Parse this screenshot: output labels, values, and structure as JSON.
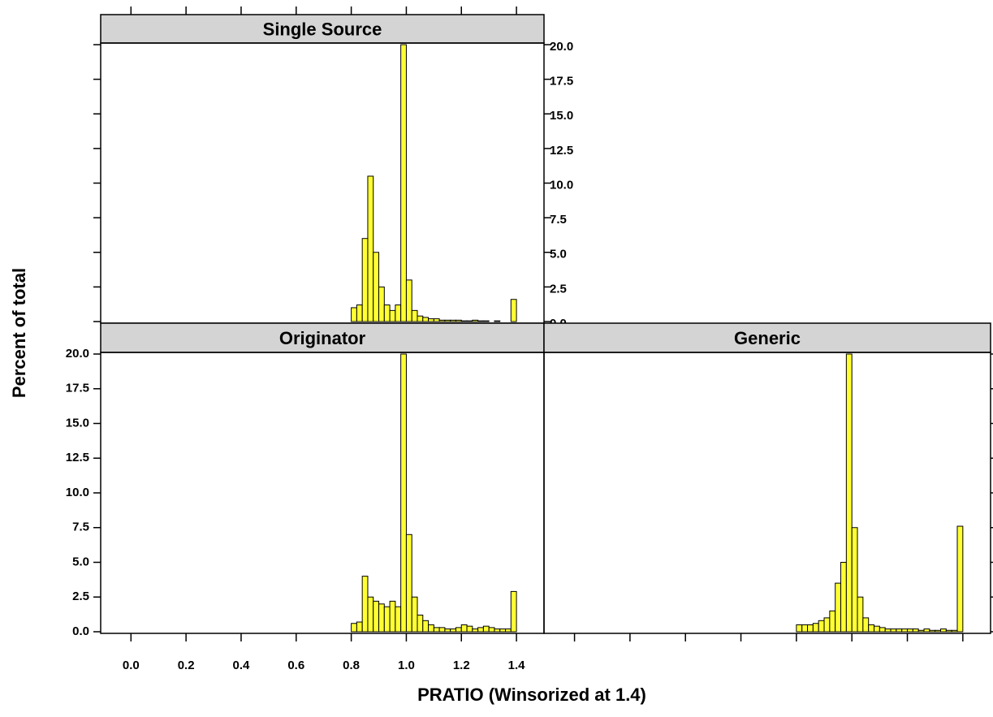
{
  "chart_data": {
    "type": "histogram",
    "xlabel": "PRATIO (Winsorized at 1.4)",
    "ylabel": "Percent of total",
    "xlim": [
      -0.11,
      1.5
    ],
    "ylim": [
      0,
      20
    ],
    "xticks": [
      {
        "value": 0,
        "label": "0.0"
      },
      0.2,
      0.4,
      0.6,
      0.8,
      {
        "value": 1,
        "label": "1.0"
      },
      1.2,
      1.4
    ],
    "yticks": [
      {
        "value": 0,
        "label": "0.0"
      },
      2.5,
      {
        "value": 5,
        "label": "5.0"
      },
      7.5,
      {
        "value": 10,
        "label": "10.0"
      },
      12.5,
      {
        "value": 15,
        "label": "15.0"
      },
      17.5,
      {
        "value": 20,
        "label": "20.0"
      }
    ],
    "color": "#ffff33",
    "bins": [
      0,
      0.02,
      0.04,
      0.06,
      0.08,
      0.1,
      0.12,
      0.14,
      0.16,
      0.18,
      0.2,
      0.22,
      0.24,
      0.26,
      0.28,
      0.3,
      0.32,
      0.34,
      0.36,
      0.38,
      0.4,
      0.42,
      0.44,
      0.46,
      0.48,
      0.5,
      0.52,
      0.54,
      0.56,
      0.58,
      0.6,
      0.62,
      0.64,
      0.66,
      0.68,
      0.7,
      0.72,
      0.74,
      0.76,
      0.78,
      0.8,
      0.82,
      0.84,
      0.86,
      0.88,
      0.9,
      0.92,
      0.94,
      0.96,
      0.98,
      1,
      1.02,
      1.04,
      1.06,
      1.08,
      1.1,
      1.12,
      1.14,
      1.16,
      1.18,
      1.2,
      1.22,
      1.24,
      1.26,
      1.28,
      1.3,
      1.32,
      1.34,
      1.36,
      1.38,
      1.4
    ],
    "panels": [
      {
        "title": "Single Source",
        "values": [
          0,
          0,
          0,
          0,
          0,
          0,
          0,
          0,
          0,
          0,
          0,
          0,
          0,
          0,
          0,
          0,
          0,
          0,
          0,
          0,
          0,
          0,
          0,
          0,
          0,
          0,
          0,
          0,
          0,
          0,
          0,
          0,
          0,
          0,
          0,
          0,
          0,
          0,
          0,
          0,
          1.0,
          1.2,
          6,
          10.5,
          5,
          2.5,
          1.2,
          0.8,
          1.2,
          20,
          3,
          0.8,
          0.4,
          0.3,
          0.2,
          0.2,
          0.1,
          0.1,
          0.1,
          0.1,
          0.05,
          0.05,
          0.1,
          0.05,
          0.05,
          0,
          0.05,
          0,
          0,
          1.6
        ]
      },
      {
        "title": "Originator",
        "values": [
          0,
          0,
          0,
          0,
          0,
          0,
          0,
          0,
          0,
          0,
          0,
          0,
          0,
          0,
          0,
          0,
          0,
          0,
          0,
          0,
          0,
          0,
          0,
          0,
          0,
          0,
          0,
          0,
          0,
          0,
          0,
          0,
          0,
          0,
          0,
          0,
          0,
          0,
          0,
          0,
          0.6,
          0.7,
          4,
          2.5,
          2.2,
          2,
          1.8,
          2.2,
          1.8,
          20,
          7,
          2.5,
          1.2,
          0.8,
          0.5,
          0.3,
          0.3,
          0.2,
          0.2,
          0.3,
          0.5,
          0.4,
          0.2,
          0.3,
          0.4,
          0.3,
          0.2,
          0.2,
          0.2,
          2.9
        ]
      },
      {
        "title": "Generic",
        "values": [
          0,
          0,
          0,
          0,
          0,
          0,
          0,
          0,
          0,
          0,
          0,
          0,
          0,
          0,
          0,
          0,
          0,
          0,
          0,
          0,
          0,
          0,
          0,
          0,
          0,
          0,
          0,
          0,
          0,
          0,
          0,
          0,
          0,
          0,
          0,
          0,
          0,
          0,
          0,
          0,
          0.5,
          0.5,
          0.5,
          0.6,
          0.8,
          1,
          1.5,
          3.5,
          5,
          20,
          7.5,
          2.5,
          1,
          0.5,
          0.4,
          0.3,
          0.2,
          0.2,
          0.2,
          0.2,
          0.2,
          0.2,
          0.1,
          0.2,
          0.1,
          0.1,
          0.2,
          0.1,
          0.1,
          7.6
        ]
      }
    ]
  }
}
